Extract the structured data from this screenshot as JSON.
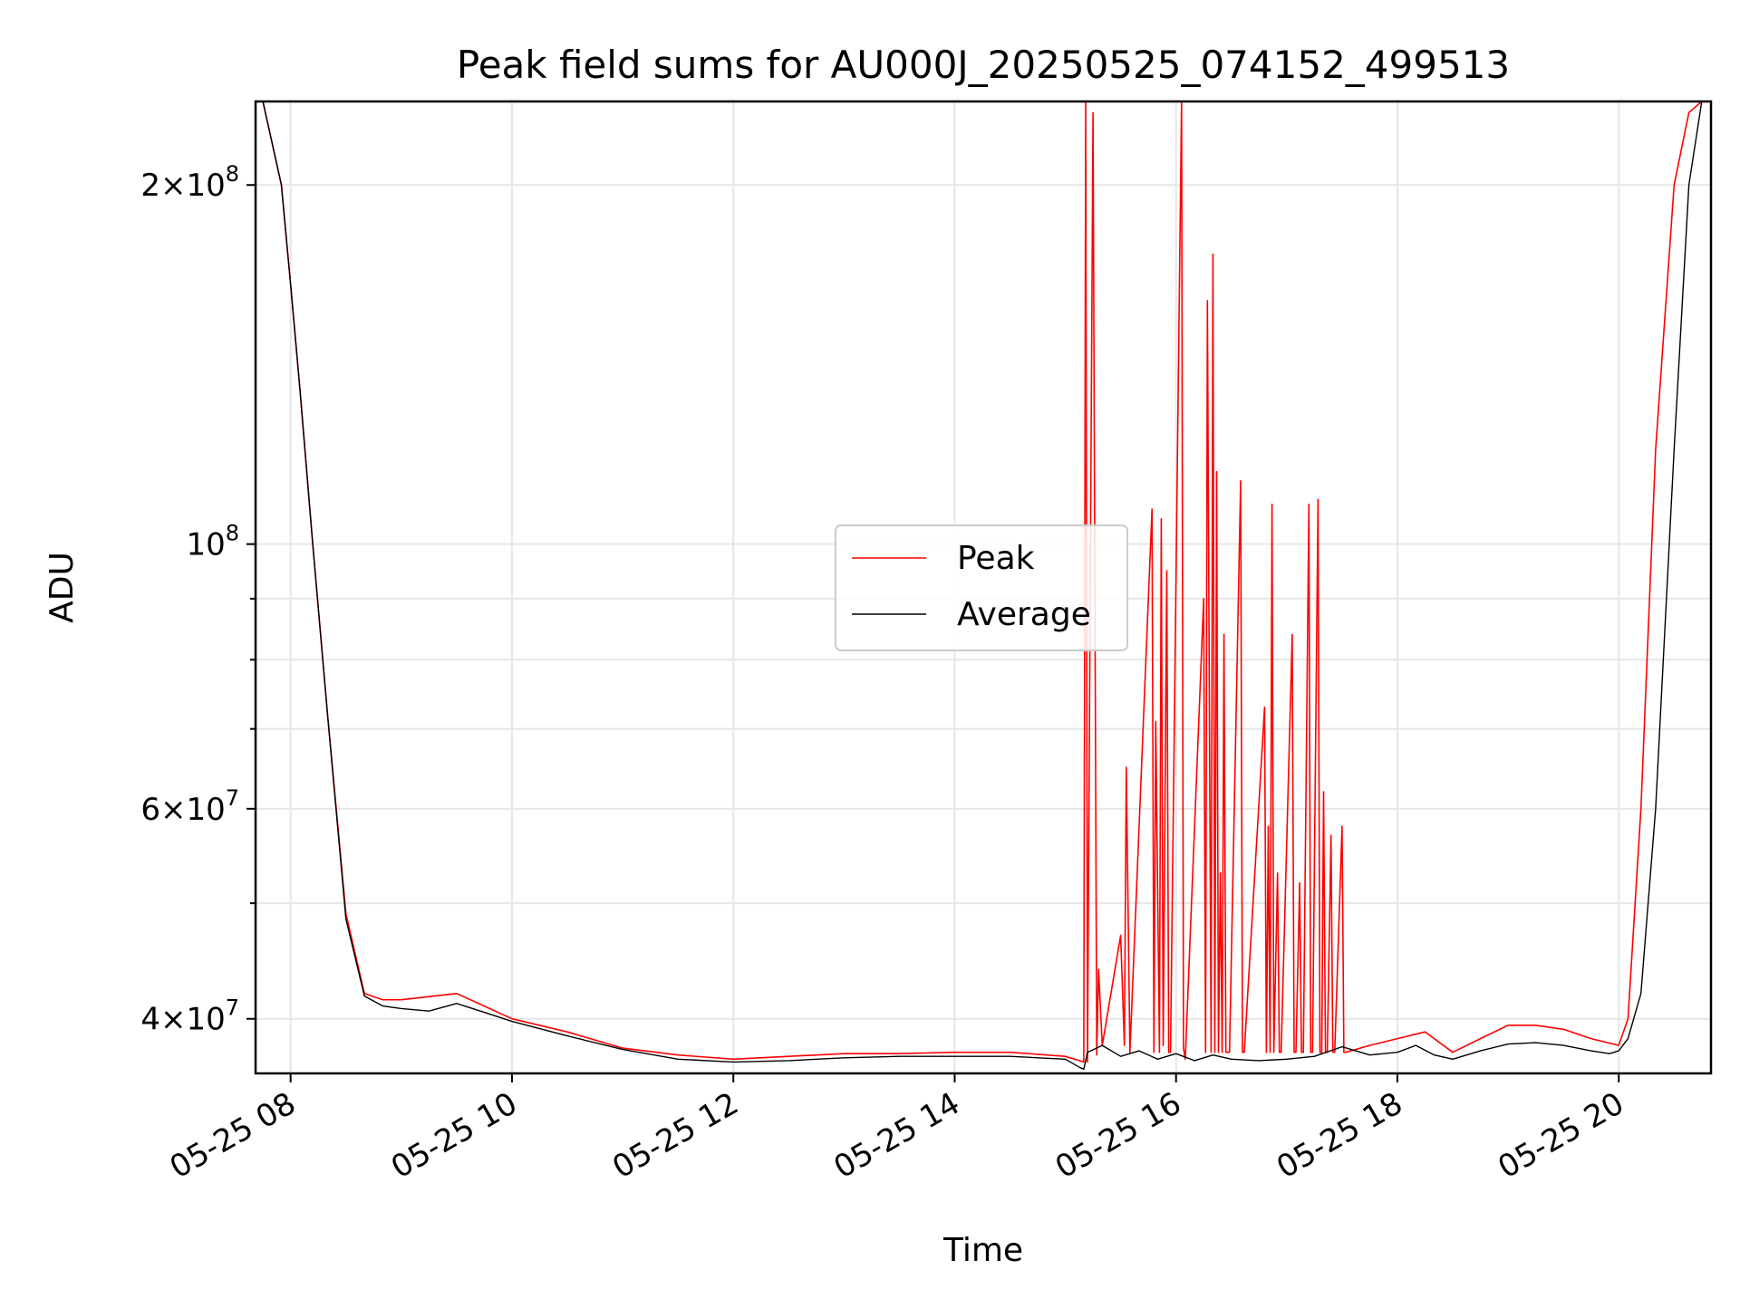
{
  "chart_data": {
    "type": "line",
    "title": "Peak field sums for AU000J_20250525_074152_499513",
    "xlabel": "Time",
    "ylabel": "ADU",
    "yscale": "log",
    "grid": true,
    "legend_position": "center",
    "x_axis_type": "time",
    "xlim": [
      "2025-05-25 07:41",
      "2025-05-25 20:50"
    ],
    "ylim": [
      36000000,
      235000000
    ],
    "x_ticks": [
      {
        "value": "2025-05-25 08:00",
        "label": "05-25 08"
      },
      {
        "value": "2025-05-25 10:00",
        "label": "05-25 10"
      },
      {
        "value": "2025-05-25 12:00",
        "label": "05-25 12"
      },
      {
        "value": "2025-05-25 14:00",
        "label": "05-25 14"
      },
      {
        "value": "2025-05-25 16:00",
        "label": "05-25 16"
      },
      {
        "value": "2025-05-25 18:00",
        "label": "05-25 18"
      },
      {
        "value": "2025-05-25 20:00",
        "label": "05-25 20"
      }
    ],
    "y_ticks_major": [
      {
        "value": 40000000,
        "mantissa": "4",
        "exponent": "7"
      },
      {
        "value": 60000000,
        "mantissa": "6",
        "exponent": "7"
      },
      {
        "value": 100000000,
        "mantissa": "",
        "exponent": "8"
      },
      {
        "value": 200000000,
        "mantissa": "2",
        "exponent": "8"
      }
    ],
    "y_ticks_minor": [
      50000000,
      70000000,
      80000000,
      90000000
    ],
    "series": [
      {
        "name": "Peak",
        "color": "#ff0000",
        "x": [
          "2025-05-25 07:45",
          "2025-05-25 07:55",
          "2025-05-25 08:00",
          "2025-05-25 08:05",
          "2025-05-25 08:12",
          "2025-05-25 08:20",
          "2025-05-25 08:30",
          "2025-05-25 08:40",
          "2025-05-25 08:50",
          "2025-05-25 09:00",
          "2025-05-25 09:30",
          "2025-05-25 10:00",
          "2025-05-25 10:30",
          "2025-05-25 11:00",
          "2025-05-25 11:30",
          "2025-05-25 12:00",
          "2025-05-25 12:30",
          "2025-05-25 13:00",
          "2025-05-25 13:30",
          "2025-05-25 14:00",
          "2025-05-25 14:30",
          "2025-05-25 15:00",
          "2025-05-25 15:10",
          "2025-05-25 15:11",
          "2025-05-25 15:12",
          "2025-05-25 15:15",
          "2025-05-25 15:17",
          "2025-05-25 15:18",
          "2025-05-25 15:20",
          "2025-05-25 15:30",
          "2025-05-25 15:32",
          "2025-05-25 15:33",
          "2025-05-25 15:35",
          "2025-05-25 15:47",
          "2025-05-25 15:48",
          "2025-05-25 15:49",
          "2025-05-25 15:51",
          "2025-05-25 15:52",
          "2025-05-25 15:53",
          "2025-05-25 15:55",
          "2025-05-25 15:56",
          "2025-05-25 15:57",
          "2025-05-25 16:03",
          "2025-05-25 16:04",
          "2025-05-25 16:05",
          "2025-05-25 16:15",
          "2025-05-25 16:16",
          "2025-05-25 16:17",
          "2025-05-25 16:19",
          "2025-05-25 16:20",
          "2025-05-25 16:21",
          "2025-05-25 16:22",
          "2025-05-25 16:23",
          "2025-05-25 16:24",
          "2025-05-25 16:25",
          "2025-05-25 16:26",
          "2025-05-25 16:27",
          "2025-05-25 16:28",
          "2025-05-25 16:29",
          "2025-05-25 16:35",
          "2025-05-25 16:36",
          "2025-05-25 16:37",
          "2025-05-25 16:48",
          "2025-05-25 16:49",
          "2025-05-25 16:50",
          "2025-05-25 16:51",
          "2025-05-25 16:52",
          "2025-05-25 16:53",
          "2025-05-25 16:55",
          "2025-05-25 16:56",
          "2025-05-25 16:57",
          "2025-05-25 17:03",
          "2025-05-25 17:04",
          "2025-05-25 17:05",
          "2025-05-25 17:07",
          "2025-05-25 17:08",
          "2025-05-25 17:09",
          "2025-05-25 17:12",
          "2025-05-25 17:13",
          "2025-05-25 17:14",
          "2025-05-25 17:17",
          "2025-05-25 17:18",
          "2025-05-25 17:19",
          "2025-05-25 17:20",
          "2025-05-25 17:21",
          "2025-05-25 17:22",
          "2025-05-25 17:24",
          "2025-05-25 17:25",
          "2025-05-25 17:26",
          "2025-05-25 17:30",
          "2025-05-25 17:31",
          "2025-05-25 17:32",
          "2025-05-25 17:45",
          "2025-05-25 18:00",
          "2025-05-25 18:15",
          "2025-05-25 18:30",
          "2025-05-25 18:45",
          "2025-05-25 19:00",
          "2025-05-25 19:15",
          "2025-05-25 19:30",
          "2025-05-25 19:45",
          "2025-05-25 20:00",
          "2025-05-25 20:05",
          "2025-05-25 20:12",
          "2025-05-25 20:20",
          "2025-05-25 20:30",
          "2025-05-25 20:38",
          "2025-05-25 20:45"
        ],
        "values": [
          235000000,
          200000000,
          165000000,
          135000000,
          100000000,
          72000000,
          49000000,
          42000000,
          41500000,
          41500000,
          42000000,
          40000000,
          39000000,
          37800000,
          37300000,
          37000000,
          37200000,
          37400000,
          37400000,
          37500000,
          37500000,
          37200000,
          36800000,
          240000000,
          36800000,
          230000000,
          37300000,
          44000000,
          38000000,
          47000000,
          38000000,
          65000000,
          37500000,
          107000000,
          37500000,
          71000000,
          37500000,
          105000000,
          38000000,
          95000000,
          37500000,
          37500000,
          240000000,
          37800000,
          37000000,
          90000000,
          37500000,
          160000000,
          37500000,
          175000000,
          37500000,
          115000000,
          37500000,
          53000000,
          37500000,
          84000000,
          37500000,
          37500000,
          37500000,
          113000000,
          37500000,
          37500000,
          73000000,
          37500000,
          58000000,
          37500000,
          108000000,
          37500000,
          53000000,
          37500000,
          37500000,
          84000000,
          37500000,
          37500000,
          52000000,
          37500000,
          37500000,
          108000000,
          37500000,
          37500000,
          109000000,
          37500000,
          37500000,
          62000000,
          37500000,
          37500000,
          57000000,
          37500000,
          37500000,
          58000000,
          37500000,
          37500000,
          38000000,
          38500000,
          39000000,
          37500000,
          38500000,
          39500000,
          39500000,
          39200000,
          38500000,
          38000000,
          40000000,
          60000000,
          120000000,
          200000000,
          230000000,
          235000000
        ]
      },
      {
        "name": "Average",
        "color": "#000000",
        "x": [
          "2025-05-25 07:45",
          "2025-05-25 07:55",
          "2025-05-25 08:00",
          "2025-05-25 08:05",
          "2025-05-25 08:12",
          "2025-05-25 08:20",
          "2025-05-25 08:30",
          "2025-05-25 08:40",
          "2025-05-25 08:50",
          "2025-05-25 09:00",
          "2025-05-25 09:15",
          "2025-05-25 09:30",
          "2025-05-25 09:45",
          "2025-05-25 10:00",
          "2025-05-25 10:30",
          "2025-05-25 11:00",
          "2025-05-25 11:30",
          "2025-05-25 12:00",
          "2025-05-25 12:30",
          "2025-05-25 13:00",
          "2025-05-25 13:30",
          "2025-05-25 14:00",
          "2025-05-25 14:30",
          "2025-05-25 15:00",
          "2025-05-25 15:08",
          "2025-05-25 15:10",
          "2025-05-25 15:12",
          "2025-05-25 15:20",
          "2025-05-25 15:30",
          "2025-05-25 15:40",
          "2025-05-25 15:50",
          "2025-05-25 16:00",
          "2025-05-25 16:10",
          "2025-05-25 16:20",
          "2025-05-25 16:30",
          "2025-05-25 16:45",
          "2025-05-25 17:00",
          "2025-05-25 17:15",
          "2025-05-25 17:30",
          "2025-05-25 17:45",
          "2025-05-25 18:00",
          "2025-05-25 18:10",
          "2025-05-25 18:20",
          "2025-05-25 18:30",
          "2025-05-25 18:45",
          "2025-05-25 19:00",
          "2025-05-25 19:15",
          "2025-05-25 19:30",
          "2025-05-25 19:45",
          "2025-05-25 19:55",
          "2025-05-25 20:00",
          "2025-05-25 20:05",
          "2025-05-25 20:12",
          "2025-05-25 20:20",
          "2025-05-25 20:30",
          "2025-05-25 20:38",
          "2025-05-25 20:45"
        ],
        "values": [
          235000000,
          200000000,
          165000000,
          135000000,
          100000000,
          72000000,
          48500000,
          41800000,
          41000000,
          40800000,
          40600000,
          41200000,
          40500000,
          39800000,
          38700000,
          37700000,
          37000000,
          36800000,
          36900000,
          37100000,
          37200000,
          37200000,
          37200000,
          37000000,
          36400000,
          36300000,
          37500000,
          38000000,
          37200000,
          37600000,
          37000000,
          37400000,
          36900000,
          37300000,
          37000000,
          36900000,
          37000000,
          37200000,
          37900000,
          37300000,
          37500000,
          38000000,
          37300000,
          37000000,
          37600000,
          38100000,
          38200000,
          38000000,
          37600000,
          37400000,
          37600000,
          38500000,
          42000000,
          60000000,
          120000000,
          200000000,
          235000000
        ]
      }
    ]
  }
}
